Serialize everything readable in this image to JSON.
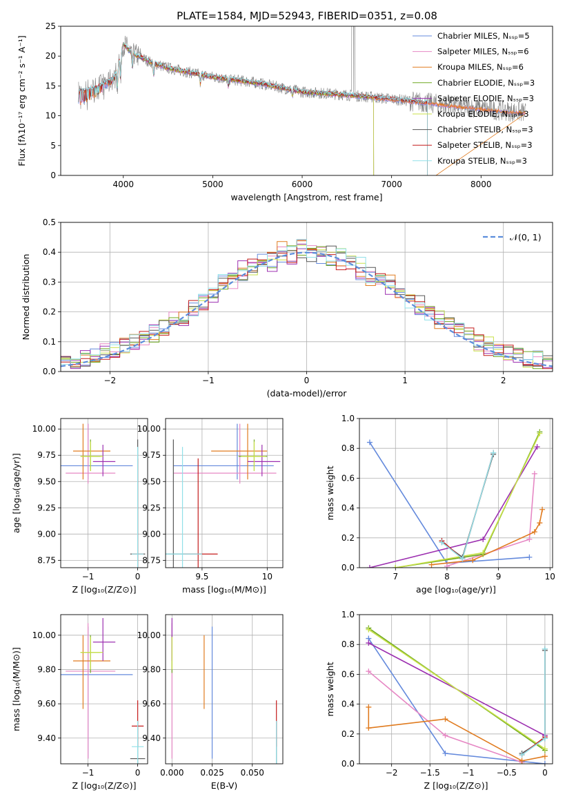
{
  "figure": {
    "title": "PLATE=1584, MJD=52943, FIBERID=0351, z=0.08"
  },
  "chart_data": [
    {
      "id": "spectrum",
      "type": "line",
      "xlabel": "wavelength [Angstrom, rest frame]",
      "ylabel": "Flux [fλ10⁻¹⁷ erg cm⁻² s⁻¹ A⁻¹]",
      "xlim": [
        3300,
        8800
      ],
      "ylim": [
        0,
        25
      ],
      "xticks": [
        4000,
        5000,
        6000,
        7000,
        8000
      ],
      "yticks": [
        0,
        5,
        10,
        15,
        20,
        25
      ],
      "legend": "top-right",
      "series": [
        {
          "name": "Chabrier MILES, Nₛₛₚ=5",
          "color": "#6389dc",
          "x_range": [
            3500,
            8500
          ],
          "cutoff": null
        },
        {
          "name": "Salpeter MILES, Nₛₛₚ=6",
          "color": "#e687c4",
          "x_range": [
            3500,
            8500
          ],
          "cutoff": null
        },
        {
          "name": "Kroupa MILES, Nₛₛₚ=6",
          "color": "#e07b1f",
          "x_range": [
            3500,
            8500
          ],
          "cutoff": 7400
        },
        {
          "name": "Chabrier ELODIE, Nₛₛₚ=3",
          "color": "#6ea820",
          "x_range": [
            3900,
            6800
          ],
          "cutoff": 6800
        },
        {
          "name": "Salpeter ELODIE, Nₛₛₚ=3",
          "color": "#9c2fb0",
          "x_range": [
            3900,
            6800
          ],
          "cutoff": 6800
        },
        {
          "name": "Kroupa ELODIE, Nₛₛₚ=3",
          "color": "#c8e048",
          "x_range": [
            3900,
            6800
          ],
          "cutoff": 6800
        },
        {
          "name": "Chabrier STELIB, Nₛₛₚ=3",
          "color": "#555555",
          "x_range": [
            3500,
            7400
          ],
          "cutoff": 7400
        },
        {
          "name": "Salpeter STELIB, Nₛₛₚ=3",
          "color": "#c41a1a",
          "x_range": [
            3500,
            7400
          ],
          "cutoff": 7400
        },
        {
          "name": "Kroupa STELIB, Nₛₛₚ=3",
          "color": "#8fe0e8",
          "x_range": [
            3500,
            7400
          ],
          "cutoff": 7400
        }
      ],
      "continuum": {
        "x": [
          3500,
          3700,
          3900,
          4000,
          4100,
          4300,
          4500,
          5000,
          5500,
          6000,
          6500,
          7000,
          7500,
          8000,
          8500
        ],
        "y": [
          14.5,
          15.0,
          16.5,
          22.0,
          20.5,
          19.0,
          18.0,
          16.5,
          15.5,
          14.0,
          13.5,
          12.8,
          12.0,
          11.2,
          10.5
        ]
      },
      "data_color": "#7f7f7f"
    },
    {
      "id": "residuals",
      "type": "line",
      "xlabel": "(data-model)/error",
      "ylabel": "Normed distribution",
      "xlim": [
        -2.5,
        2.5
      ],
      "ylim": [
        0,
        0.5
      ],
      "xticks": [
        -2,
        -1,
        0,
        1,
        2
      ],
      "yticks": [
        0.0,
        0.1,
        0.2,
        0.3,
        0.4,
        0.5
      ],
      "legend": "top-right",
      "gaussian": {
        "label": "𝒩(0, 1)",
        "mean": 0,
        "sigma": 1,
        "color": "#5b8ddc"
      },
      "bin_width": 0.1
    },
    {
      "id": "age_vs_Z",
      "type": "scatter",
      "xlabel": "Z [log₁₀(Z/Z⊙)]",
      "ylabel": "age  [log₁₀(age/yr)]",
      "xlim": [
        -1.55,
        0.2
      ],
      "ylim": [
        8.68,
        10.1
      ],
      "xticks": [
        -1,
        0
      ],
      "yticks": [
        8.75,
        9.0,
        9.25,
        9.5,
        9.75,
        10.0
      ]
    },
    {
      "id": "age_vs_mass",
      "type": "scatter",
      "xlabel": "mass [log₁₀(M/M⊙)]",
      "xlim": [
        9.22,
        10.12
      ],
      "ylim": [
        8.68,
        10.1
      ],
      "xticks": [
        9.5,
        10.0
      ],
      "yticks": [
        8.75,
        9.0,
        9.25,
        9.5,
        9.75,
        10.0
      ]
    },
    {
      "id": "massweight_vs_age",
      "type": "line",
      "xlabel": "age  [log₁₀(age/yr)]",
      "ylabel": "mass weight",
      "xlim": [
        6.3,
        10.05
      ],
      "ylim": [
        0,
        1.0
      ],
      "xticks": [
        7,
        8,
        9,
        10
      ],
      "yticks": [
        0.0,
        0.2,
        0.4,
        0.6,
        0.8,
        1.0
      ]
    },
    {
      "id": "mass_vs_Z",
      "type": "scatter",
      "xlabel": "Z [log₁₀(Z/Z⊙)]",
      "ylabel": "mass [log₁₀(M/M⊙)]",
      "xlim": [
        -1.55,
        0.2
      ],
      "ylim": [
        9.25,
        10.12
      ],
      "xticks": [
        -1,
        0
      ],
      "yticks": [
        9.4,
        9.6,
        9.8,
        10.0
      ]
    },
    {
      "id": "mass_vs_ebv",
      "type": "scatter",
      "xlabel": "E(B-V)",
      "xlim": [
        -0.004,
        0.069
      ],
      "ylim": [
        9.25,
        10.12
      ],
      "xticks": [
        0.0,
        0.025,
        0.05
      ],
      "xticklabels": [
        "0.000",
        "0.025",
        "0.050"
      ],
      "yticks": [
        9.4,
        9.6,
        9.8,
        10.0
      ]
    },
    {
      "id": "massweight_vs_Z",
      "type": "line",
      "xlabel": "Z [log₁₀(Z/Z⊙)]",
      "ylabel": "mass weight",
      "xlim": [
        -2.42,
        0.1
      ],
      "ylim": [
        0,
        1.0
      ],
      "xticks": [
        -2.0,
        -1.5,
        -1.0,
        -0.5,
        0.0
      ],
      "yticks": [
        0.0,
        0.2,
        0.4,
        0.6,
        0.8,
        1.0
      ]
    }
  ],
  "models": [
    {
      "name": "Chabrier MILES",
      "color": "#6389dc",
      "Z": -1.0,
      "Zerr": [
        -1.55,
        -0.1
      ],
      "age": 9.65,
      "ageerr": [
        9.52,
        10.05
      ],
      "mass": 9.77,
      "masserr": [
        9.28,
        10.05
      ],
      "ebv": 0.025,
      "sfh_age": [
        9.6,
        8.0,
        6.5
      ],
      "sfh_w": [
        0.07,
        0.03,
        0.84
      ],
      "sfh_Z": [
        0.0,
        -1.3,
        -2.3
      ],
      "sfh_wz": [
        0.0,
        0.07,
        0.84
      ]
    },
    {
      "name": "Salpeter MILES",
      "color": "#e687c4",
      "Z": -1.0,
      "Zerr": [
        -1.45,
        -0.45
      ],
      "age": 9.58,
      "ageerr": [
        9.48,
        10.05
      ],
      "mass": 9.79,
      "masserr": [
        9.28,
        10.07
      ],
      "ebv": 0.0,
      "sfh_age": [
        9.7,
        9.6,
        8.0
      ],
      "sfh_w": [
        0.63,
        0.19,
        0.01
      ],
      "sfh_Z": [
        -2.3,
        -1.3,
        -0.3
      ],
      "sfh_wz": [
        0.62,
        0.19,
        0.01
      ]
    },
    {
      "name": "Kroupa MILES",
      "color": "#e07b1f",
      "Z": -1.1,
      "Zerr": [
        -1.3,
        -0.55
      ],
      "age": 9.79,
      "ageerr": [
        9.52,
        10.05
      ],
      "mass": 9.85,
      "masserr": [
        9.57,
        10.0
      ],
      "ebv": 0.02,
      "sfh_age": [
        9.85,
        9.8,
        9.7,
        8.5,
        7.7
      ],
      "sfh_w": [
        0.39,
        0.3,
        0.24,
        0.05,
        0.02
      ],
      "sfh_Z": [
        -2.3,
        -2.3,
        -1.3,
        -0.3,
        0.0
      ],
      "sfh_wz": [
        0.38,
        0.24,
        0.3,
        0.02,
        0.05
      ]
    },
    {
      "name": "Chabrier ELODIE",
      "color": "#6ea820",
      "Z": -0.95,
      "Zerr": [
        -1.15,
        -0.75
      ],
      "age": 9.74,
      "ageerr": [
        9.6,
        9.9
      ],
      "mass": 9.9,
      "masserr": [
        9.78,
        10.0
      ],
      "ebv": 0.0,
      "sfh_age": [
        9.8,
        8.7,
        7.0
      ],
      "sfh_w": [
        0.91,
        0.09,
        0.0
      ],
      "sfh_Z": [
        -2.3,
        0.0
      ],
      "sfh_wz": [
        0.91,
        0.09
      ]
    },
    {
      "name": "Salpeter ELODIE",
      "color": "#9c2fb0",
      "Z": -0.7,
      "Zerr": [
        -0.9,
        -0.45
      ],
      "age": 9.69,
      "ageerr": [
        9.55,
        9.85
      ],
      "mass": 9.96,
      "masserr": [
        9.85,
        10.1
      ],
      "ebv": 0.0,
      "sfh_age": [
        9.75,
        8.7,
        6.5
      ],
      "sfh_w": [
        0.81,
        0.19,
        0.0
      ],
      "sfh_Z": [
        -2.3,
        0.0
      ],
      "sfh_wz": [
        0.81,
        0.19
      ]
    },
    {
      "name": "Kroupa ELODIE",
      "color": "#c8e048",
      "Z": -0.95,
      "Zerr": [
        -1.15,
        -0.7
      ],
      "age": 9.74,
      "ageerr": [
        9.6,
        9.88
      ],
      "mass": 9.9,
      "masserr": [
        9.8,
        9.99
      ],
      "ebv": 0.0,
      "sfh_age": [
        9.8,
        8.7,
        7.0
      ],
      "sfh_w": [
        0.9,
        0.1,
        0.0
      ],
      "sfh_Z": [
        -2.3,
        0.0
      ],
      "sfh_wz": [
        0.9,
        0.1
      ]
    },
    {
      "name": "Chabrier STELIB",
      "color": "#555555",
      "Z": 0.0,
      "Zerr": [
        -0.15,
        0.15
      ],
      "age": 8.81,
      "ageerr": [
        8.68,
        9.9
      ],
      "mass": 9.28,
      "masserr": [
        9.2,
        9.5
      ],
      "ebv": 0.065,
      "sfh_age": [
        8.9,
        8.3,
        7.9
      ],
      "sfh_w": [
        0.76,
        0.07,
        0.17
      ],
      "sfh_Z": [
        0.0,
        0.0,
        -0.3
      ],
      "sfh_wz": [
        0.76,
        0.17,
        0.07
      ]
    },
    {
      "name": "Salpeter STELIB",
      "color": "#c41a1a",
      "Z": 0.0,
      "Zerr": [
        -0.12,
        0.12
      ],
      "age": 8.81,
      "ageerr": [
        8.68,
        9.72
      ],
      "mass": 9.47,
      "masserr": [
        9.35,
        9.62
      ],
      "ebv": 0.065,
      "sfh_age": [
        8.9,
        8.3,
        7.9
      ],
      "sfh_w": [
        0.77,
        0.06,
        0.18
      ],
      "sfh_Z": [
        0.0,
        0.0,
        -0.3
      ],
      "sfh_wz": [
        0.77,
        0.18,
        0.06
      ]
    },
    {
      "name": "Kroupa STELIB",
      "color": "#8fe0e8",
      "Z": 0.0,
      "Zerr": [
        -0.12,
        0.12
      ],
      "age": 8.81,
      "ageerr": [
        8.68,
        9.83
      ],
      "mass": 9.35,
      "masserr": [
        9.2,
        9.5
      ],
      "ebv": 0.065,
      "sfh_age": [
        8.9,
        8.3,
        7.9
      ],
      "sfh_w": [
        0.77,
        0.06,
        0.17
      ],
      "sfh_Z": [
        0.0,
        0.0,
        -0.3
      ],
      "sfh_wz": [
        0.77,
        0.17,
        0.06
      ]
    }
  ]
}
